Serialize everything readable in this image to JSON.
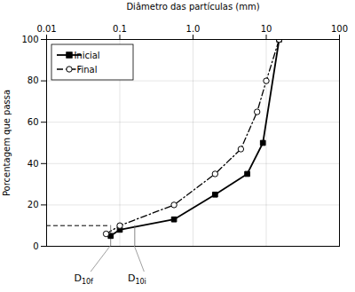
{
  "chart_data": {
    "type": "line",
    "x_label": "Diâmetro das partículas (mm)",
    "y_label": "Porcentagem que passa",
    "log": "x",
    "grid": true,
    "legend": "upper left",
    "xlim": [
      0.01,
      100
    ],
    "ylim": [
      0,
      100
    ],
    "xticks": [
      0.01,
      0.1,
      {
        "value": 1,
        "label": "1.0"
      },
      10,
      100
    ],
    "yticks": [
      0,
      20,
      40,
      60,
      80,
      100
    ],
    "series": [
      {
        "name": "Inicial",
        "color": "#000000",
        "marker": "square",
        "line_style": "solid",
        "x": [
          0.075,
          0.1,
          0.55,
          2.0,
          5.5,
          9.0,
          15.0
        ],
        "values": [
          5,
          8,
          13,
          25,
          35,
          50,
          100
        ]
      },
      {
        "name": "Final",
        "color": "#000000",
        "marker": "circle",
        "line_style": "dashdot",
        "x": [
          0.065,
          0.1,
          0.55,
          2.0,
          4.5,
          7.5,
          10.0,
          15.0
        ],
        "values": [
          6,
          10,
          20,
          35,
          47,
          65,
          80,
          100
        ]
      }
    ],
    "guide": {
      "y": 10,
      "x_end": 0.075
    },
    "annotations": [
      {
        "text": "D",
        "subscript": "10f",
        "x": 0.075
      },
      {
        "text": "D",
        "subscript": "10i",
        "x": 0.16
      }
    ]
  }
}
